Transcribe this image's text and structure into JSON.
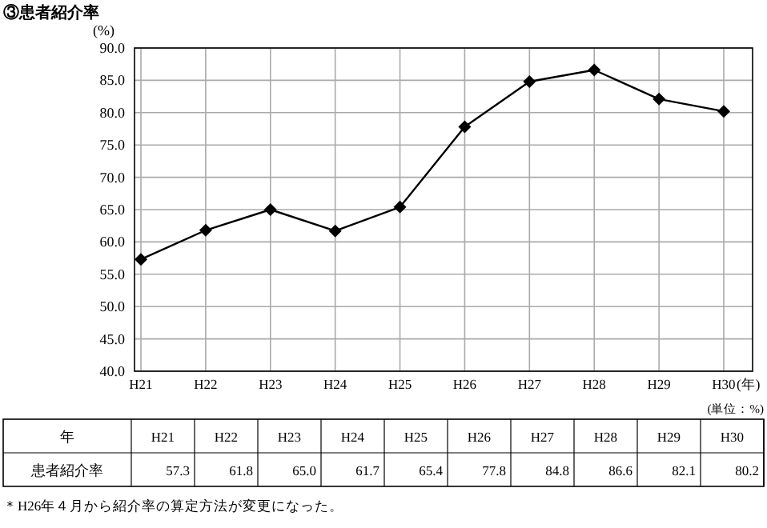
{
  "chart_data": [
    {
      "type": "line",
      "title": "③患者紹介率",
      "ylabel": "(%)",
      "xlabel": "(年)",
      "categories": [
        "H21",
        "H22",
        "H23",
        "H24",
        "H25",
        "H26",
        "H27",
        "H28",
        "H29",
        "H30"
      ],
      "series": [
        {
          "color": "#000000",
          "values": [
            57.3,
            61.8,
            65.0,
            61.7,
            65.4,
            77.8,
            84.8,
            86.6,
            82.1,
            80.2
          ]
        }
      ],
      "ylim": [
        40,
        90
      ],
      "yticks": [
        {
          "value": 40,
          "label": "40.0"
        },
        {
          "value": 45,
          "label": "45.0"
        },
        {
          "value": 50,
          "label": "50.0"
        },
        {
          "value": 55,
          "label": "55.0"
        },
        {
          "value": 60,
          "label": "60.0"
        },
        {
          "value": 65,
          "label": "65.0"
        },
        {
          "value": 70,
          "label": "70.0"
        },
        {
          "value": 75,
          "label": "75.0"
        },
        {
          "value": 80,
          "label": "80.0"
        },
        {
          "value": 85,
          "label": "85.0"
        },
        {
          "value": 90,
          "label": "90.0"
        }
      ],
      "grid": true,
      "marker": "diamond",
      "line_style": "solid"
    },
    {
      "type": "other",
      "xlabel": "年",
      "categories": [
        "H21",
        "H22",
        "H23",
        "H24",
        "H25",
        "H26",
        "H27",
        "H28",
        "H29",
        "H30"
      ],
      "series": [
        {
          "name": "患者紹介率",
          "values": [
            57.3,
            61.8,
            65.0,
            61.7,
            65.4,
            77.8,
            84.8,
            86.6,
            82.1,
            80.2
          ],
          "value_labels": [
            "57.3",
            "61.8",
            "65.0",
            "61.7",
            "65.4",
            "77.8",
            "84.8",
            "86.6",
            "82.1",
            "80.2"
          ]
        }
      ],
      "annotations": [
        "(単位：%)",
        "＊H26年４月から紹介率の算定方法が変更になった。"
      ]
    }
  ]
}
